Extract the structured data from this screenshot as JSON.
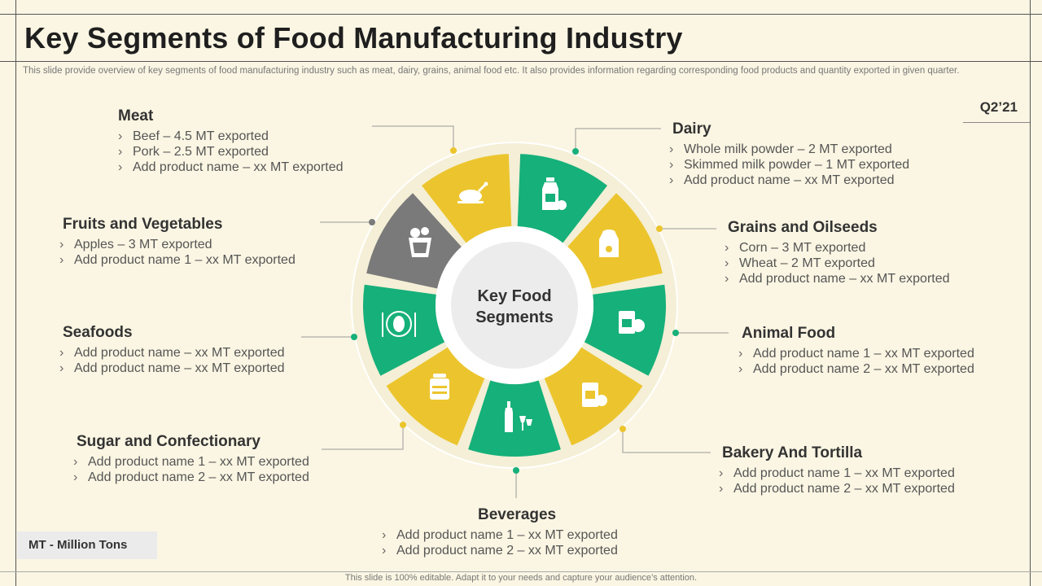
{
  "title": "Key Segments of Food Manufacturing Industry",
  "subtitle": "This slide provide overview of key segments of food manufacturing industry such as meat, dairy, grains, animal food etc. It also provides information regarding corresponding food products and quantity exported in given quarter.",
  "quarter": "Q2’21",
  "center": {
    "line1": "Key Food",
    "line2": "Segments"
  },
  "colors": {
    "green": "#16b07a",
    "yellow": "#ecc52e",
    "gray": "#7a7a7a",
    "background": "#fbf6e3"
  },
  "segments": {
    "meat": {
      "title": "Meat",
      "items": [
        "Beef – 4.5 MT exported",
        "Pork – 2.5 MT exported",
        "Add product name – xx MT exported"
      ],
      "icon": "roast-chicken-icon"
    },
    "dairy": {
      "title": "Dairy",
      "items": [
        "Whole milk powder – 2 MT exported",
        "Skimmed milk powder – 1 MT exported",
        "Add product name – xx MT exported"
      ],
      "icon": "milk-bottle-icon"
    },
    "grains": {
      "title": "Grains and Oilseeds",
      "items": [
        "Corn – 3 MT exported",
        "Wheat – 2 MT exported",
        "Add product name – xx MT exported"
      ],
      "icon": "grain-sack-icon"
    },
    "animal": {
      "title": "Animal Food",
      "items": [
        "Add product name 1 – xx MT exported",
        "Add product name 2 – xx MT exported"
      ],
      "icon": "pet-food-bag-icon"
    },
    "bakery": {
      "title": "Bakery And Tortilla",
      "items": [
        "Add product name 1 – xx MT exported",
        "Add product name 2 – xx MT exported"
      ],
      "icon": "bakery-bag-icon"
    },
    "beverages": {
      "title": "Beverages",
      "items": [
        "Add product name 1  – xx MT exported",
        "Add product name 2 – xx MT exported"
      ],
      "icon": "wine-bottle-icon"
    },
    "sugar": {
      "title": "Sugar and Confectionary",
      "items": [
        "Add product name 1  – xx MT exported",
        "Add product name 2 – xx MT exported"
      ],
      "icon": "candy-jar-icon"
    },
    "seafoods": {
      "title": "Seafoods",
      "items": [
        "Add product name – xx MT exported",
        "Add product name – xx MT exported"
      ],
      "icon": "fish-plate-icon"
    },
    "fruits": {
      "title": "Fruits and Vegetables",
      "items": [
        "Apples – 3 MT exported",
        "Add product name 1 – xx MT exported"
      ],
      "icon": "fruit-basket-icon"
    }
  },
  "legend": "MT - Million  Tons",
  "footer": "This slide is 100% editable. Adapt it to your needs and capture your audience’s attention."
}
